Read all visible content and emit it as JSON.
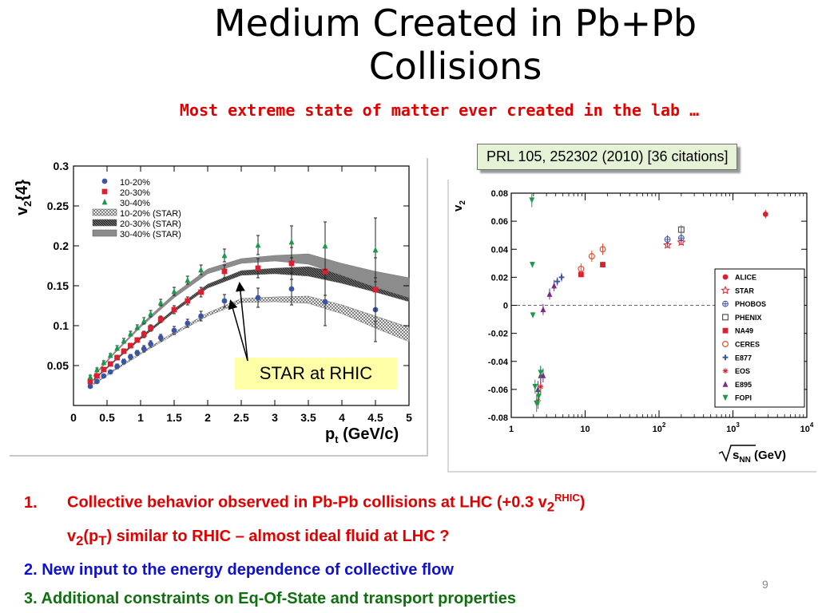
{
  "slide": {
    "title": "Medium Created in Pb+Pb Collisions",
    "subtitle": "Most extreme state of matter ever created in the lab …",
    "citation": "PRL 105, 252302 (2010) [36 citations]",
    "callout": "STAR at RHIC",
    "page_number": "9",
    "bullets": [
      {
        "number": "1.",
        "text": "Collective behavior observed in Pb-Pb collisions at LHC (+0.3 v",
        "sub": "2",
        "sup": "RHIC",
        "tail": ")",
        "color": "#e00000"
      },
      {
        "text_a": "v",
        "sub_a": "2",
        "text_b": "(p",
        "sub_b": "T",
        "text_c": ") similar to RHIC – almost ideal fluid at LHC ?",
        "color": "#e00000"
      },
      {
        "text": "2. New input to the energy dependence of collective flow",
        "color": "#1010d0"
      },
      {
        "text": "3. Additional constraints on Eq-Of-State and transport properties",
        "color": "#107010"
      }
    ]
  },
  "chart_data": [
    {
      "type": "scatter",
      "xlabel": "p",
      "xlabel_sub": "t",
      "xlabel_unit": " (GeV/c)",
      "ylabel": "v",
      "ylabel_sub": "2",
      "ylabel_tail": "{4}",
      "xlim": [
        0,
        5
      ],
      "ylim": [
        0,
        0.3
      ],
      "xticks": [
        0,
        0.5,
        1,
        1.5,
        2,
        2.5,
        3,
        3.5,
        4,
        4.5,
        5
      ],
      "xtick_labels": [
        "0",
        "0.5",
        "1",
        "1.5",
        "2",
        "2.5",
        "3",
        "3.5",
        "4",
        "4.5",
        "5"
      ],
      "yticks": [
        0.05,
        0.1,
        0.15,
        0.2,
        0.25,
        0.3
      ],
      "ytick_labels": [
        "0.05",
        "0.1",
        "0.15",
        "0.2",
        "0.25",
        "0.3"
      ],
      "legend": [
        {
          "label": "10-20%",
          "marker": "circle",
          "color": "#3a55a5"
        },
        {
          "label": "20-30%",
          "marker": "square",
          "color": "#dd2030"
        },
        {
          "label": "30-40%",
          "marker": "triangle",
          "color": "#1a9a4a"
        },
        {
          "label": "10-20% (STAR)",
          "marker": "band",
          "color": "#9a9a9a"
        },
        {
          "label": "20-30% (STAR)",
          "marker": "band",
          "color": "#555555"
        },
        {
          "label": "30-40% (STAR)",
          "marker": "band",
          "color": "#888888"
        }
      ],
      "series": [
        {
          "name": "10-20%",
          "marker": "circle",
          "color": "#3a55a5",
          "x": [
            0.25,
            0.35,
            0.45,
            0.55,
            0.65,
            0.75,
            0.85,
            0.95,
            1.05,
            1.15,
            1.3,
            1.5,
            1.7,
            1.9,
            2.25,
            2.75,
            3.25,
            3.75,
            4.5
          ],
          "y": [
            0.024,
            0.03,
            0.037,
            0.042,
            0.049,
            0.055,
            0.061,
            0.066,
            0.071,
            0.077,
            0.085,
            0.094,
            0.103,
            0.112,
            0.131,
            0.135,
            0.146,
            0.13,
            0.12
          ],
          "err": [
            0.002,
            0.002,
            0.002,
            0.002,
            0.003,
            0.003,
            0.003,
            0.003,
            0.004,
            0.004,
            0.004,
            0.005,
            0.005,
            0.006,
            0.008,
            0.012,
            0.02,
            0.03,
            0.04
          ]
        },
        {
          "name": "20-30%",
          "marker": "square",
          "color": "#dd2030",
          "x": [
            0.25,
            0.35,
            0.45,
            0.55,
            0.65,
            0.75,
            0.85,
            0.95,
            1.05,
            1.15,
            1.3,
            1.5,
            1.7,
            1.9,
            2.25,
            2.75,
            3.25,
            3.75,
            4.5
          ],
          "y": [
            0.03,
            0.037,
            0.045,
            0.052,
            0.06,
            0.068,
            0.075,
            0.082,
            0.089,
            0.097,
            0.108,
            0.12,
            0.131,
            0.142,
            0.168,
            0.172,
            0.178,
            0.168,
            0.145
          ],
          "err": [
            0.002,
            0.002,
            0.002,
            0.002,
            0.003,
            0.003,
            0.003,
            0.003,
            0.004,
            0.004,
            0.004,
            0.005,
            0.005,
            0.006,
            0.008,
            0.012,
            0.02,
            0.03,
            0.04
          ]
        },
        {
          "name": "30-40%",
          "marker": "triangle",
          "color": "#1a9a4a",
          "x": [
            0.25,
            0.35,
            0.45,
            0.55,
            0.65,
            0.75,
            0.85,
            0.95,
            1.05,
            1.15,
            1.3,
            1.5,
            1.7,
            1.9,
            2.25,
            2.75,
            3.25,
            3.75,
            4.5
          ],
          "y": [
            0.036,
            0.045,
            0.054,
            0.063,
            0.072,
            0.081,
            0.09,
            0.098,
            0.106,
            0.115,
            0.129,
            0.143,
            0.157,
            0.17,
            0.188,
            0.201,
            0.205,
            0.2,
            0.195
          ],
          "err": [
            0.002,
            0.002,
            0.002,
            0.002,
            0.003,
            0.003,
            0.003,
            0.003,
            0.004,
            0.004,
            0.004,
            0.005,
            0.005,
            0.006,
            0.008,
            0.012,
            0.02,
            0.03,
            0.04
          ]
        }
      ],
      "bands": [
        {
          "name": "10-20% (STAR)",
          "color": "#9a9a9a",
          "x": [
            0.3,
            0.6,
            1.0,
            1.5,
            2.0,
            2.5,
            3.0,
            3.5,
            4.0,
            4.5,
            5.0
          ],
          "lo": [
            0.026,
            0.043,
            0.064,
            0.089,
            0.112,
            0.129,
            0.13,
            0.128,
            0.115,
            0.097,
            0.08
          ],
          "hi": [
            0.028,
            0.045,
            0.066,
            0.092,
            0.116,
            0.134,
            0.136,
            0.137,
            0.126,
            0.112,
            0.098
          ]
        },
        {
          "name": "20-30% (STAR)",
          "color": "#555555",
          "x": [
            0.3,
            0.6,
            1.0,
            1.5,
            2.0,
            2.5,
            3.0,
            3.5,
            4.0,
            4.5,
            5.0
          ],
          "lo": [
            0.031,
            0.054,
            0.083,
            0.117,
            0.147,
            0.163,
            0.165,
            0.162,
            0.153,
            0.142,
            0.13
          ],
          "hi": [
            0.033,
            0.056,
            0.086,
            0.121,
            0.152,
            0.169,
            0.172,
            0.174,
            0.166,
            0.158,
            0.15
          ]
        },
        {
          "name": "30-40% (STAR)",
          "color": "#888888",
          "x": [
            0.3,
            0.6,
            1.0,
            1.5,
            2.0,
            2.5,
            3.0,
            3.5,
            4.0,
            4.5,
            5.0
          ],
          "lo": [
            0.036,
            0.064,
            0.098,
            0.135,
            0.165,
            0.178,
            0.181,
            0.177,
            0.163,
            0.148,
            0.135
          ],
          "hi": [
            0.038,
            0.066,
            0.101,
            0.14,
            0.171,
            0.184,
            0.188,
            0.19,
            0.178,
            0.168,
            0.16
          ]
        }
      ]
    },
    {
      "type": "scatter",
      "xscale": "log",
      "xlabel": "s",
      "xlabel_sub": "NN",
      "xlabel_unit": " (GeV)",
      "ylabel": "v",
      "ylabel_sub": "2",
      "xlim": [
        1,
        10000
      ],
      "ylim": [
        -0.08,
        0.08
      ],
      "xticks": [
        1,
        10,
        100,
        1000,
        10000
      ],
      "xtick_labels": [
        {
          "base": "1",
          "exp": ""
        },
        {
          "base": "10",
          "exp": ""
        },
        {
          "base": "10",
          "exp": "2"
        },
        {
          "base": "10",
          "exp": "3"
        },
        {
          "base": "10",
          "exp": "4"
        }
      ],
      "yticks": [
        -0.08,
        -0.06,
        -0.04,
        -0.02,
        0,
        0.02,
        0.04,
        0.06,
        0.08
      ],
      "ytick_labels": [
        "-0.08",
        "-0.06",
        "-0.04",
        "-0.02",
        "0",
        "0.02",
        "0.04",
        "0.06",
        "0.08"
      ],
      "reference_line_y": 0,
      "series": [
        {
          "name": "ALICE",
          "marker": "circle",
          "color": "#dd2030",
          "x": [
            2760
          ],
          "y": [
            0.065
          ],
          "err": [
            0.003
          ]
        },
        {
          "name": "STAR",
          "marker": "star-open",
          "color": "#dd2030",
          "x": [
            130,
            200
          ],
          "y": [
            0.043,
            0.045
          ],
          "err": [
            0.002,
            0.002
          ]
        },
        {
          "name": "PHOBOS",
          "marker": "cross-circle",
          "color": "#3a55a5",
          "x": [
            130,
            200
          ],
          "y": [
            0.047,
            0.048
          ],
          "err": [
            0.003,
            0.003
          ]
        },
        {
          "name": "PHENIX",
          "marker": "square-open",
          "color": "#555555",
          "x": [
            200
          ],
          "y": [
            0.054
          ],
          "err": [
            0.003
          ]
        },
        {
          "name": "NA49",
          "marker": "square",
          "color": "#dd2030",
          "x": [
            8.8,
            17.3
          ],
          "y": [
            0.022,
            0.029
          ],
          "err": [
            0.002,
            0.002
          ]
        },
        {
          "name": "CERES",
          "marker": "circle-open",
          "color": "#e05030",
          "x": [
            8.8,
            12.3,
            17.3
          ],
          "y": [
            0.026,
            0.035,
            0.04
          ],
          "err": [
            0.004,
            0.004,
            0.004
          ]
        },
        {
          "name": "E877",
          "marker": "plus",
          "color": "#3a55a5",
          "x": [
            4.2,
            4.8
          ],
          "y": [
            0.017,
            0.02
          ],
          "err": [
            0.003,
            0.003
          ]
        },
        {
          "name": "EOS",
          "marker": "asterisk",
          "color": "#dd2030",
          "x": [
            2.3,
            2.5
          ],
          "y": [
            -0.068,
            -0.058
          ],
          "err": [
            0.006,
            0.006
          ]
        },
        {
          "name": "E895",
          "marker": "triangle",
          "color": "#7a2a8a",
          "x": [
            2.5,
            2.7,
            3.3,
            3.8,
            2.7,
            2.3
          ],
          "y": [
            -0.05,
            -0.003,
            0.008,
            0.014,
            -0.05,
            -0.06
          ],
          "err": [
            0.006,
            0.004,
            0.004,
            0.004,
            0.005,
            0.006
          ]
        },
        {
          "name": "FOPI",
          "marker": "triangle-down",
          "color": "#1a9a4a",
          "x": [
            1.9,
            1.93,
            1.96,
            2.1,
            2.2,
            2.35,
            2.5
          ],
          "y": [
            0.075,
            0.029,
            -0.007,
            -0.058,
            -0.07,
            -0.065,
            -0.048
          ],
          "err": [
            0.005,
            0.002,
            0.002,
            0.005,
            0.006,
            0.006,
            0.005
          ]
        }
      ]
    }
  ]
}
